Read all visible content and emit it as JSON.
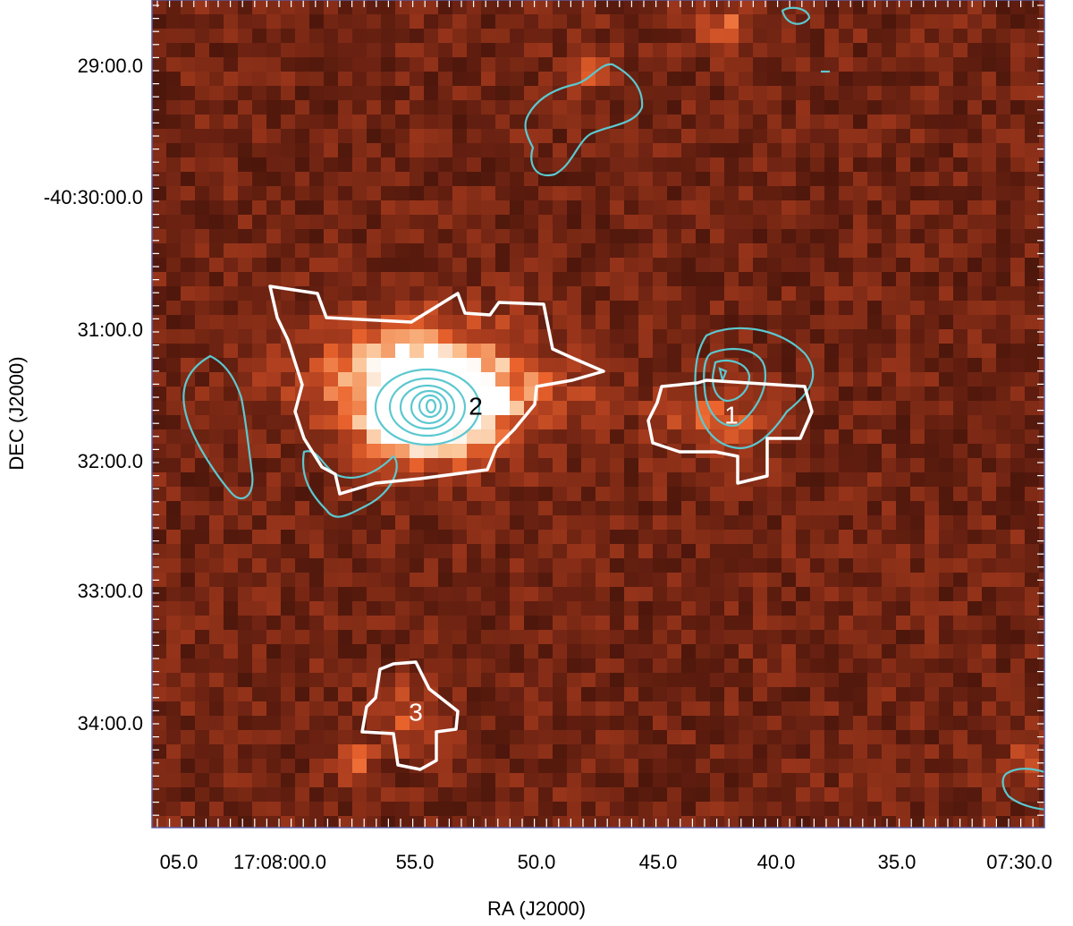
{
  "x_axis": {
    "label": "RA (J2000)",
    "ticks": [
      "05.0",
      "17:08:00.0",
      "55.0",
      "50.0",
      "45.0",
      "40.0",
      "35.0",
      "07:30.0"
    ]
  },
  "y_axis": {
    "label": "DEC (J2000)",
    "ticks": [
      "29:00.0",
      "-40:30:00.0",
      "31:00.0",
      "32:00.0",
      "33:00.0",
      "34:00.0"
    ]
  },
  "sources": [
    {
      "label": "2"
    },
    {
      "label": "1"
    },
    {
      "label": "3"
    }
  ]
}
